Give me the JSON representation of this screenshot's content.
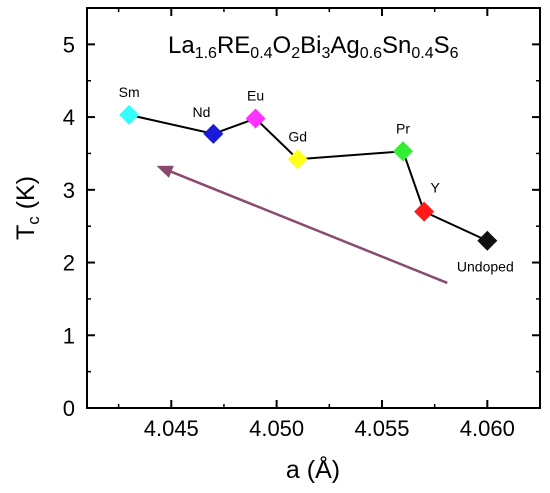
{
  "chart_data": {
    "type": "scatter",
    "title": "La1.6RE0.4O2Bi3Ag0.6Sn0.4S6",
    "title_parts": [
      {
        "text": "La",
        "sub": false
      },
      {
        "text": "1.6",
        "sub": true
      },
      {
        "text": "RE",
        "sub": false
      },
      {
        "text": "0.4",
        "sub": true
      },
      {
        "text": "O",
        "sub": false
      },
      {
        "text": "2",
        "sub": true
      },
      {
        "text": "Bi",
        "sub": false
      },
      {
        "text": "3",
        "sub": true
      },
      {
        "text": "Ag",
        "sub": false
      },
      {
        "text": "0.6",
        "sub": true
      },
      {
        "text": "Sn",
        "sub": false
      },
      {
        "text": "0.4",
        "sub": true
      },
      {
        "text": "S",
        "sub": false
      },
      {
        "text": "6",
        "sub": true
      }
    ],
    "xlabel": "a (Å)",
    "ylabel_main": "T",
    "ylabel_sub": "c",
    "ylabel_unit": " (K)",
    "xlim": [
      4.041,
      4.0625
    ],
    "ylim": [
      0,
      5.5
    ],
    "xticks": [
      4.045,
      4.05,
      4.055,
      4.06
    ],
    "xtick_labels": [
      "4.045",
      "4.050",
      "4.055",
      "4.060"
    ],
    "yticks": [
      0,
      1,
      2,
      3,
      4,
      5
    ],
    "ytick_labels": [
      "0",
      "1",
      "2",
      "3",
      "4",
      "5"
    ],
    "grid": false,
    "connected": true,
    "points": [
      {
        "label": "Sm",
        "x": 4.043,
        "y": 4.03,
        "color": "#33ffff",
        "label_pos": "above"
      },
      {
        "label": "Nd",
        "x": 4.047,
        "y": 3.77,
        "color": "#1a1adc",
        "label_pos": "above-left"
      },
      {
        "label": "Eu",
        "x": 4.049,
        "y": 3.98,
        "color": "#ff33ff",
        "label_pos": "above"
      },
      {
        "label": "Gd",
        "x": 4.051,
        "y": 3.42,
        "color": "#ffff1a",
        "label_pos": "above"
      },
      {
        "label": "Pr",
        "x": 4.056,
        "y": 3.53,
        "color": "#33ee33",
        "label_pos": "above"
      },
      {
        "label": "Y",
        "x": 4.057,
        "y": 2.7,
        "color": "#ff1a1a",
        "label_pos": "above-right"
      },
      {
        "label": "Undoped",
        "x": 4.06,
        "y": 2.3,
        "color": "#111111",
        "label_pos": "below"
      }
    ],
    "arrow": {
      "from": {
        "x": 4.0581,
        "y": 1.72
      },
      "to": {
        "x": 4.0443,
        "y": 3.33
      },
      "color": "#8a4a6e"
    }
  }
}
